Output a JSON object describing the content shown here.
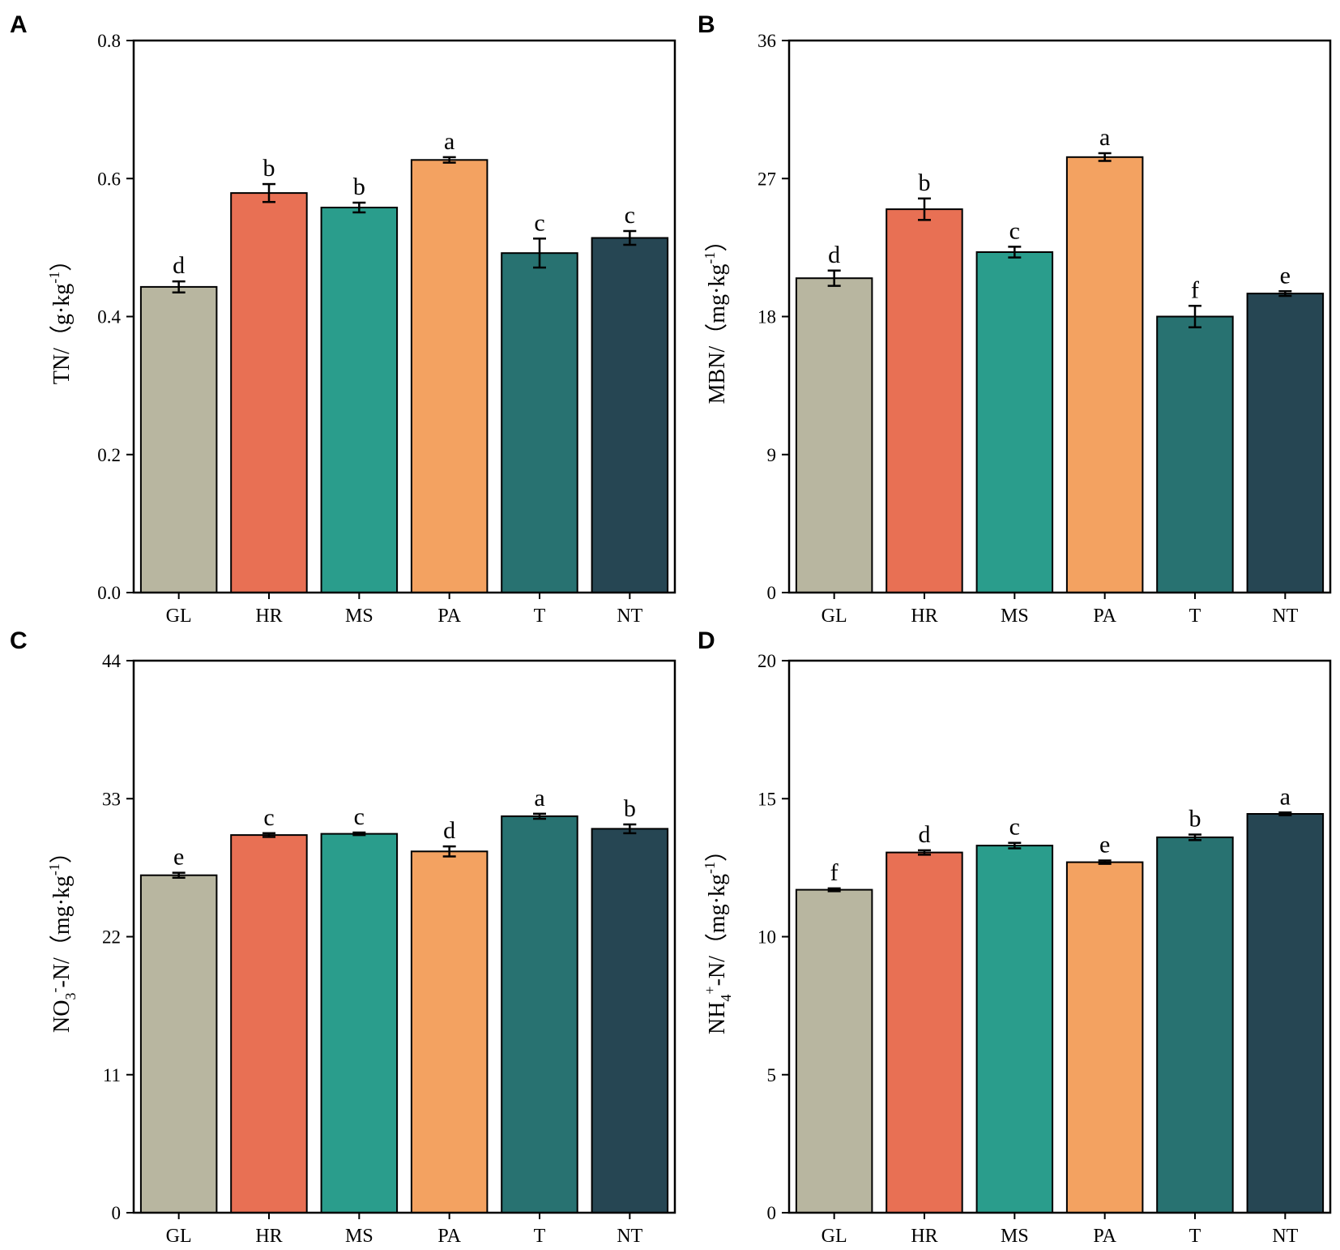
{
  "colors": {
    "GL": "#b8b6a0",
    "HR": "#e87054",
    "MS": "#2a9d8c",
    "PA": "#f3a261",
    "T": "#287271",
    "NT": "#264653",
    "axis": "#000000"
  },
  "chart_data": [
    {
      "panel": "A",
      "type": "bar",
      "categories": [
        "GL",
        "HR",
        "MS",
        "PA",
        "T",
        "NT"
      ],
      "values": [
        0.443,
        0.579,
        0.558,
        0.627,
        0.492,
        0.514
      ],
      "errors": [
        0.008,
        0.013,
        0.007,
        0.004,
        0.021,
        0.01
      ],
      "letters": [
        "d",
        "b",
        "b",
        "a",
        "c",
        "c"
      ],
      "ylim": [
        0,
        0.8
      ],
      "yticks": [
        0.0,
        0.2,
        0.4,
        0.6,
        0.8
      ],
      "ytick_labels": [
        "0.0",
        "0.2",
        "0.4",
        "0.6",
        "0.8"
      ],
      "ylabel": {
        "pre": "TN/（g·kg",
        "sup": "-1",
        "post": "）"
      },
      "xlabel": "",
      "title": ""
    },
    {
      "panel": "B",
      "type": "bar",
      "categories": [
        "GL",
        "HR",
        "MS",
        "PA",
        "T",
        "NT"
      ],
      "values": [
        20.5,
        25.0,
        22.2,
        28.4,
        18.0,
        19.5
      ],
      "errors": [
        0.5,
        0.7,
        0.35,
        0.25,
        0.7,
        0.15
      ],
      "letters": [
        "d",
        "b",
        "c",
        "a",
        "f",
        "e"
      ],
      "ylim": [
        0,
        36
      ],
      "yticks": [
        0,
        9,
        18,
        27,
        36
      ],
      "ytick_labels": [
        "0",
        "9",
        "18",
        "27",
        "36"
      ],
      "ylabel": {
        "pre": "MBN/（mg·kg",
        "sup": "-1",
        "post": "）"
      },
      "xlabel": "",
      "title": ""
    },
    {
      "panel": "C",
      "type": "bar",
      "categories": [
        "GL",
        "HR",
        "MS",
        "PA",
        "T",
        "NT"
      ],
      "values": [
        26.9,
        30.1,
        30.2,
        28.8,
        31.6,
        30.6
      ],
      "errors": [
        0.2,
        0.15,
        0.1,
        0.4,
        0.2,
        0.35
      ],
      "letters": [
        "e",
        "c",
        "c",
        "d",
        "a",
        "b"
      ],
      "ylim": [
        0,
        44
      ],
      "yticks": [
        0,
        11,
        22,
        33,
        44
      ],
      "ytick_labels": [
        "0",
        "11",
        "22",
        "33",
        "44"
      ],
      "ylabel": {
        "pre": "NO",
        "sub": "3",
        "sup": "-",
        "post": "-N/（mg·kg",
        "sup2": "-1",
        "post2": "）"
      },
      "xlabel": "",
      "title": ""
    },
    {
      "panel": "D",
      "type": "bar",
      "categories": [
        "GL",
        "HR",
        "MS",
        "PA",
        "T",
        "NT"
      ],
      "values": [
        11.7,
        13.05,
        13.3,
        12.7,
        13.6,
        14.45
      ],
      "errors": [
        0.05,
        0.08,
        0.1,
        0.06,
        0.1,
        0.05
      ],
      "letters": [
        "f",
        "d",
        "c",
        "e",
        "b",
        "a"
      ],
      "ylim": [
        0,
        20
      ],
      "yticks": [
        0,
        5,
        10,
        15,
        20
      ],
      "ytick_labels": [
        "0",
        "5",
        "10",
        "15",
        "20"
      ],
      "ylabel": {
        "pre": "NH",
        "sub": "4",
        "sup": "+",
        "post": "-N/（mg·kg",
        "sup2": "-1",
        "post2": "）"
      },
      "xlabel": "",
      "title": ""
    }
  ]
}
